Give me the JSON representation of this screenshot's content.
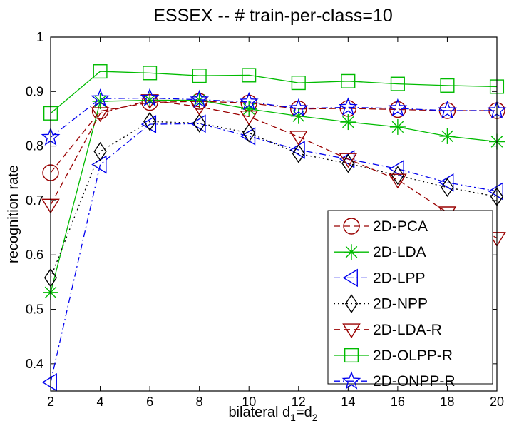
{
  "chart_data": {
    "type": "line",
    "title": "ESSEX -- # train-per-class=10",
    "xlabel_parts": {
      "main": "bilateral d",
      "sub1": "1",
      "eq": "=d",
      "sub2": "2"
    },
    "ylabel": "recognition rate",
    "xlim": [
      2,
      20
    ],
    "ylim": [
      0.35,
      1.0
    ],
    "xticks": [
      2,
      4,
      6,
      8,
      10,
      12,
      14,
      16,
      18,
      20
    ],
    "yticks": [
      0.4,
      0.5,
      0.6,
      0.7,
      0.8,
      0.9,
      1.0
    ],
    "ytick_labels": [
      "0.4",
      "0.5",
      "0.6",
      "0.7",
      "0.8",
      "0.9",
      "1"
    ],
    "legend_position": "bottom-right",
    "x": [
      2,
      4,
      6,
      8,
      10,
      12,
      14,
      16,
      18,
      20
    ],
    "series": [
      {
        "name": "2D-PCA",
        "color": "#990000",
        "dash": "dashed",
        "marker": "circle",
        "values": [
          0.751,
          0.864,
          0.88,
          0.882,
          0.879,
          0.868,
          0.869,
          0.867,
          0.865,
          0.865
        ]
      },
      {
        "name": "2D-LDA",
        "color": "#00bb00",
        "dash": "solid",
        "marker": "asterisk",
        "values": [
          0.531,
          0.882,
          0.884,
          0.884,
          0.868,
          0.855,
          0.844,
          0.835,
          0.818,
          0.808
        ]
      },
      {
        "name": "2D-LPP",
        "color": "#0000ee",
        "dash": "dashdot",
        "marker": "triangle-left",
        "values": [
          0.366,
          0.766,
          0.84,
          0.841,
          0.818,
          0.793,
          0.776,
          0.758,
          0.733,
          0.717
        ]
      },
      {
        "name": "2D-NPP",
        "color": "#000000",
        "dash": "dotted",
        "marker": "diamond",
        "values": [
          0.558,
          0.79,
          0.845,
          0.842,
          0.824,
          0.786,
          0.768,
          0.746,
          0.724,
          0.707
        ]
      },
      {
        "name": "2D-LDA-R",
        "color": "#990000",
        "dash": "dashed",
        "marker": "triangle-down",
        "values": [
          0.692,
          0.86,
          0.884,
          0.872,
          0.854,
          0.817,
          0.776,
          0.738,
          0.678,
          0.631
        ]
      },
      {
        "name": "2D-OLPP-R",
        "color": "#00bb00",
        "dash": "solid",
        "marker": "square",
        "values": [
          0.86,
          0.937,
          0.934,
          0.929,
          0.93,
          0.916,
          0.919,
          0.914,
          0.911,
          0.909
        ]
      },
      {
        "name": "2D-ONPP-R",
        "color": "#0000ee",
        "dash": "dashdot",
        "marker": "pentagram",
        "values": [
          0.816,
          0.887,
          0.888,
          0.885,
          0.881,
          0.869,
          0.871,
          0.869,
          0.865,
          0.865
        ]
      }
    ]
  }
}
